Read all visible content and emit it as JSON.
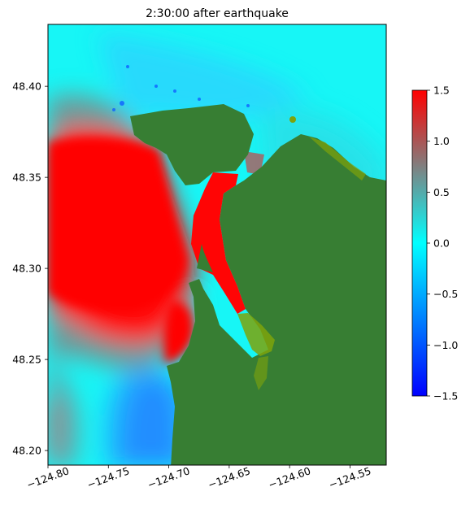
{
  "chart_data": {
    "type": "heatmap",
    "title": "2:30:00 after earthquake",
    "xlabel": "",
    "ylabel": "",
    "xlim": [
      -124.8,
      -124.52
    ],
    "ylim": [
      48.192,
      48.434
    ],
    "x_ticks": [
      {
        "value": -124.8,
        "label": "−124.80"
      },
      {
        "value": -124.75,
        "label": "−124.75"
      },
      {
        "value": -124.7,
        "label": "−124.70"
      },
      {
        "value": -124.65,
        "label": "−124.65"
      },
      {
        "value": -124.6,
        "label": "−124.60"
      },
      {
        "value": -124.55,
        "label": "−124.55"
      }
    ],
    "y_ticks": [
      {
        "value": 48.2,
        "label": "48.20"
      },
      {
        "value": 48.25,
        "label": "48.25"
      },
      {
        "value": 48.3,
        "label": "48.30"
      },
      {
        "value": 48.35,
        "label": "48.35"
      },
      {
        "value": 48.4,
        "label": "48.40"
      }
    ],
    "colorbar": {
      "range": [
        -1.5,
        1.5
      ],
      "colors": [
        "#0000ff",
        "#00ffff",
        "#808080",
        "#ff0000"
      ],
      "color_stops": [
        -1.5,
        0.0,
        0.75,
        1.5
      ],
      "ticks": [
        {
          "value": 1.5,
          "label": "1.5"
        },
        {
          "value": 1.0,
          "label": "1.0"
        },
        {
          "value": 0.5,
          "label": "0.5"
        },
        {
          "value": 0.0,
          "label": "0.0"
        },
        {
          "value": -0.5,
          "label": "−0.5"
        },
        {
          "value": -1.0,
          "label": "−1.0"
        },
        {
          "value": -1.5,
          "label": "−1.5"
        }
      ]
    },
    "land_color": "#377e33",
    "intertidal_color": "#7ea30c",
    "regions": [
      {
        "name": "land",
        "fill": "#377e33",
        "points": [
          [
            -124.8,
            48.192
          ],
          [
            -124.8,
            48.194
          ]
        ]
      }
    ]
  }
}
